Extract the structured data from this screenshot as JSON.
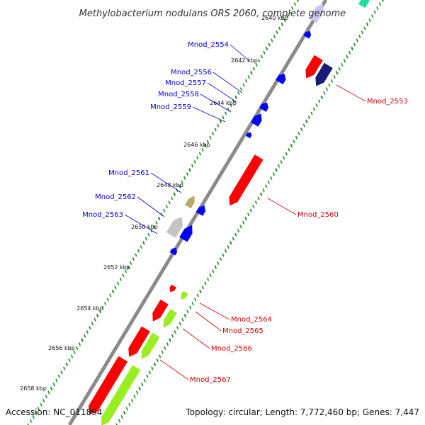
{
  "title": "Methylobacterium nodulans ORS 2060, complete genome",
  "footer": {
    "accession": "Accession: NC_011894",
    "summary": "Topology: circular; Length: 7,772,460 bp; Genes: 7,447"
  },
  "colors": {
    "background": "#ffffff",
    "backbone": "#8a8a8a",
    "tick_dots": "#228b22",
    "forward_label": "#0000cc",
    "reverse_label": "#cc0000",
    "forward_gene": "#0000ff",
    "reverse_gene": "#ff0000",
    "rna_gene": "#99ee22",
    "pale_gene": "#c8c8f0",
    "navy_gene": "#1a1a77",
    "teal_gene": "#22dd99",
    "olive_gene": "#bba866",
    "grey_gene": "#c4c4c4"
  },
  "ruler": {
    "unit": "kbp",
    "ticks": [
      {
        "label": "2640 kbp",
        "kbp": 2640
      },
      {
        "label": "2642 kbp",
        "kbp": 2642
      },
      {
        "label": "2644 kbp",
        "kbp": 2644
      },
      {
        "label": "2646 kbp",
        "kbp": 2646
      },
      {
        "label": "2648 kbp",
        "kbp": 2648
      },
      {
        "label": "2650 kbp",
        "kbp": 2650
      },
      {
        "label": "2652 kbp",
        "kbp": 2652
      },
      {
        "label": "2654 kbp",
        "kbp": 2654
      },
      {
        "label": "2656 kbp",
        "kbp": 2656
      },
      {
        "label": "2658 kbp",
        "kbp": 2658
      }
    ]
  },
  "genes": {
    "forward": [
      {
        "name": "Mnod_2554"
      },
      {
        "name": "Mnod_2556"
      },
      {
        "name": "Mnod_2557"
      },
      {
        "name": "Mnod_2558"
      },
      {
        "name": "Mnod_2559"
      },
      {
        "name": "Mnod_2561"
      },
      {
        "name": "Mnod_2562"
      },
      {
        "name": "Mnod_2563"
      }
    ],
    "reverse": [
      {
        "name": "Mnod_2553"
      },
      {
        "name": "Mnod_2560"
      },
      {
        "name": "Mnod_2564"
      },
      {
        "name": "Mnod_2565"
      },
      {
        "name": "Mnod_2566"
      },
      {
        "name": "Mnod_2567"
      }
    ]
  }
}
